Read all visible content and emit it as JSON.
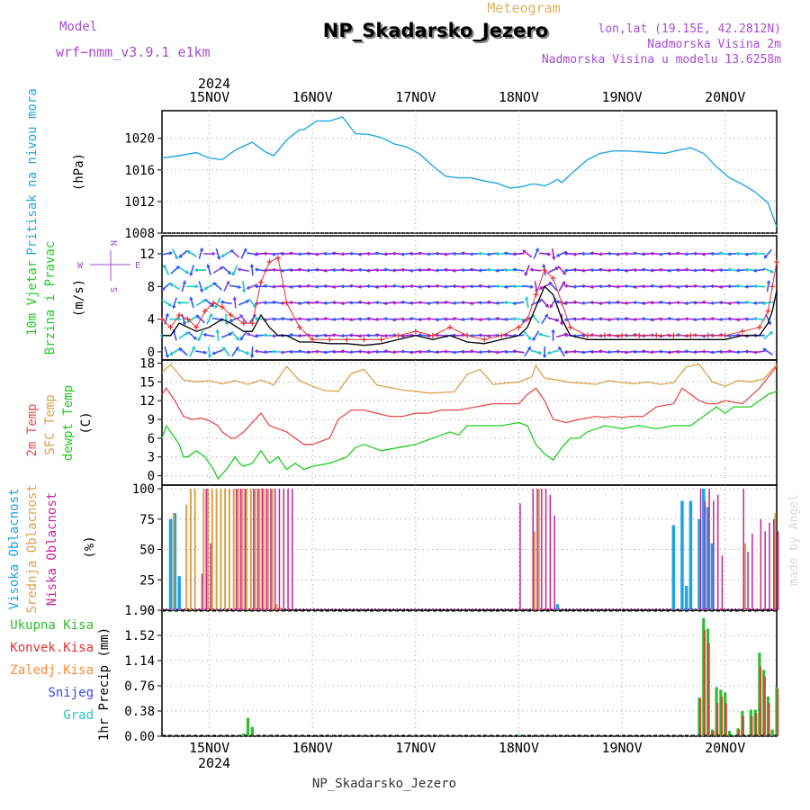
{
  "header": {
    "model_label": "Model",
    "model_name": "wrf−nmm_v3.9.1 e1km",
    "meteogram_label": "Meteogram",
    "station": "NP_Skadarsko_Jezero",
    "coords": "lon,lat (19.15E, 42.2812N)",
    "elevation": "Nadmorska Visina 2m",
    "model_elevation": "Nadmorska Visina u modelu 13.6258m",
    "footer_station": "NP_Skadarsko_Jezero",
    "watermark": "made by Angel"
  },
  "colors": {
    "pressure": "#22a7e0",
    "wind_speed": "#000000",
    "wind_gust": "#e53030",
    "temp_2m": "#e64b4b",
    "sfc_temp": "#d9a24a",
    "dewpoint": "#22cc22",
    "high_cloud": "#1ba3e6",
    "mid_cloud": "#d9a24a",
    "low_cloud": "#cc2299",
    "total_precip": "#33bb33",
    "conv_precip": "#e53030",
    "frozen_precip": "#ff8833",
    "snow": "#3344ff",
    "graupel": "#22ccbb",
    "label_purple": "#a64cd6"
  },
  "time_axis": {
    "year": "2024",
    "days": [
      "15NOV",
      "16NOV",
      "17NOV",
      "18NOV",
      "19NOV",
      "20NOV"
    ],
    "start_hour": 1,
    "end_hour": 144,
    "day_noon_hours": [
      12,
      36,
      60,
      84,
      108,
      132
    ]
  },
  "chart_data": [
    {
      "type": "line",
      "id": "pressure",
      "ylabel": [
        "Pritisak na nivou mora",
        "(hPa)"
      ],
      "yticks": [
        1008,
        1012,
        1016,
        1020
      ],
      "ylim": [
        1008,
        1023.5
      ],
      "grid": true,
      "series": [
        {
          "hours": [
            1,
            5,
            9,
            12,
            15,
            18,
            22,
            25,
            27,
            30,
            33,
            34,
            37,
            40,
            43,
            46,
            49,
            52,
            55,
            58,
            61,
            64,
            67,
            70,
            73,
            76,
            79,
            82,
            85,
            87,
            88,
            90,
            91,
            93,
            94,
            96,
            100,
            103,
            106,
            109,
            112,
            115,
            118,
            121,
            124,
            127,
            130,
            133,
            136,
            139,
            142,
            144
          ],
          "values": [
            1017.5,
            1017.8,
            1018.2,
            1017.5,
            1017.3,
            1018.5,
            1019.5,
            1018.3,
            1017.8,
            1019.8,
            1021.1,
            1021.1,
            1022.2,
            1022.2,
            1022.7,
            1020.6,
            1020.5,
            1020.1,
            1019.3,
            1018.9,
            1018.0,
            1016.5,
            1015.2,
            1015.0,
            1015.0,
            1014.6,
            1014.3,
            1013.7,
            1013.9,
            1014.2,
            1014.2,
            1014.0,
            1014.2,
            1014.8,
            1014.4,
            1015.4,
            1017.3,
            1018.1,
            1018.4,
            1018.4,
            1018.3,
            1018.2,
            1018.1,
            1018.5,
            1018.8,
            1018.1,
            1016.4,
            1015.0,
            1014.2,
            1013.2,
            1011.8,
            1008.8
          ]
        }
      ]
    },
    {
      "type": "line",
      "id": "wind",
      "ylabel": [
        "10m Vjetar",
        "Brzina i Pravac",
        "(m/s)"
      ],
      "direction_key": [
        "N",
        "E",
        "W",
        "S"
      ],
      "yticks": [
        0,
        4,
        8,
        12
      ],
      "ylim": [
        -1,
        14.2
      ],
      "grid": true,
      "series": [
        {
          "name": "wind_speed",
          "hours": [
            1,
            3,
            5,
            7,
            9,
            12,
            15,
            17,
            20,
            22,
            24,
            26,
            28,
            30,
            33,
            36,
            40,
            44,
            48,
            52,
            56,
            60,
            64,
            68,
            72,
            76,
            80,
            84,
            86,
            88,
            90,
            92,
            94,
            96,
            100,
            104,
            108,
            112,
            116,
            120,
            124,
            128,
            132,
            136,
            140,
            142,
            143,
            144
          ],
          "values": [
            2,
            2,
            3.5,
            3,
            2.5,
            3,
            4,
            3.5,
            2.5,
            2.5,
            4.5,
            3,
            2,
            2,
            1.2,
            1.2,
            1,
            1,
            0.8,
            1,
            1.5,
            2,
            1.5,
            2,
            1.2,
            1,
            1.5,
            2,
            3,
            5.5,
            8,
            7,
            4,
            2,
            1.5,
            1.5,
            1.5,
            1.5,
            1.5,
            1.5,
            1.5,
            1.5,
            1.5,
            2,
            2,
            3.5,
            5,
            7.5
          ]
        },
        {
          "name": "wind_gust",
          "hours": [
            1,
            3,
            5,
            7,
            9,
            11,
            13,
            15,
            17,
            20,
            22,
            24,
            26,
            28,
            30,
            33,
            36,
            40,
            44,
            48,
            52,
            56,
            60,
            64,
            68,
            72,
            76,
            80,
            84,
            86,
            88,
            90,
            92,
            94,
            96,
            100,
            104,
            108,
            112,
            116,
            120,
            124,
            128,
            132,
            136,
            140,
            142,
            143,
            144
          ],
          "values": [
            4,
            3,
            4.5,
            4,
            3,
            5,
            6,
            5.5,
            4.5,
            3.5,
            3.5,
            8.5,
            11,
            11.5,
            6,
            3,
            1.5,
            1.5,
            1.5,
            1.5,
            1.5,
            2,
            2.5,
            2,
            3,
            2,
            1.5,
            2,
            3,
            4,
            7,
            10,
            9,
            6,
            3,
            2,
            2,
            2,
            2,
            2,
            2,
            2,
            2,
            2,
            2.5,
            3,
            5,
            8,
            11
          ]
        }
      ]
    },
    {
      "type": "line",
      "id": "temperature",
      "ylabel": [
        "2m Temp",
        "SFC Temp",
        "dewpt Temp",
        "(C)"
      ],
      "yticks": [
        0,
        3,
        6,
        9,
        12,
        15,
        18
      ],
      "ylim": [
        -1.5,
        18.5
      ],
      "grid": true,
      "series": [
        {
          "name": "sfc",
          "hours": [
            1,
            3,
            6,
            9,
            12,
            15,
            18,
            21,
            24,
            27,
            30,
            33,
            36,
            39,
            42,
            45,
            48,
            51,
            54,
            57,
            60,
            63,
            66,
            69,
            72,
            75,
            78,
            81,
            84,
            87,
            88,
            90,
            93,
            96,
            99,
            102,
            105,
            108,
            111,
            114,
            117,
            120,
            123,
            126,
            129,
            132,
            135,
            138,
            141,
            144
          ],
          "values": [
            16.5,
            17.8,
            15.3,
            15.0,
            15.2,
            14.7,
            15.2,
            14.6,
            15.3,
            14.5,
            17.5,
            15.2,
            14.3,
            13.6,
            13.5,
            16.3,
            17.0,
            14.5,
            14.1,
            13.7,
            13.5,
            13.2,
            13.3,
            13.4,
            16.2,
            17.0,
            14.6,
            14.8,
            15.0,
            15.8,
            17.6,
            15.6,
            15.3,
            14.9,
            14.8,
            14.6,
            15.2,
            14.9,
            14.7,
            15.0,
            14.6,
            14.9,
            17.4,
            17.8,
            15.0,
            14.3,
            15.2,
            15.0,
            15.5,
            17.8
          ]
        },
        {
          "name": "temp_2m",
          "hours": [
            1,
            2,
            4,
            6,
            8,
            10,
            12,
            14,
            15,
            17,
            18,
            20,
            22,
            24,
            26,
            28,
            30,
            32,
            34,
            36,
            40,
            42,
            45,
            48,
            51,
            54,
            57,
            60,
            63,
            66,
            70,
            74,
            78,
            82,
            84,
            86,
            88,
            90,
            92,
            95,
            98,
            102,
            104,
            106,
            108,
            110,
            113,
            116,
            120,
            122,
            124,
            126,
            128,
            130,
            132,
            136,
            140,
            144
          ],
          "values": [
            13,
            14,
            12,
            9.5,
            9,
            9.2,
            8.8,
            8,
            7,
            6,
            6,
            7,
            8.5,
            10,
            8,
            7.5,
            7,
            6,
            5,
            5,
            6,
            9,
            10.5,
            10.5,
            10,
            9.5,
            9.5,
            10,
            10,
            10.5,
            10.5,
            11,
            11.5,
            11.5,
            11.5,
            13,
            14,
            12,
            9,
            8.5,
            9,
            9.5,
            9.3,
            9.5,
            9.3,
            9.5,
            9.5,
            11,
            11.5,
            14,
            13,
            12,
            11.5,
            11.5,
            12,
            11.5,
            14,
            17.5
          ]
        },
        {
          "name": "dewpoint",
          "hours": [
            1,
            2,
            3,
            5,
            6,
            7,
            9,
            11,
            12,
            13,
            14,
            16,
            18,
            19,
            20,
            22,
            24,
            26,
            28,
            30,
            32,
            34,
            36,
            40,
            44,
            46,
            48,
            50,
            52,
            56,
            60,
            64,
            68,
            70,
            72,
            76,
            80,
            84,
            86,
            88,
            90,
            92,
            94,
            96,
            98,
            100,
            104,
            108,
            112,
            116,
            120,
            124,
            126,
            128,
            130,
            132,
            134,
            136,
            138,
            140,
            142,
            144
          ],
          "values": [
            6,
            8,
            7,
            5,
            3,
            3,
            4,
            3,
            2,
            1,
            -0.5,
            1,
            3,
            2,
            1.5,
            2,
            4,
            2,
            3,
            1,
            2,
            1,
            1.5,
            2,
            3,
            4.5,
            5,
            4.5,
            4,
            4.5,
            5,
            6,
            7,
            6.5,
            8,
            8,
            8,
            8.5,
            8,
            5,
            3.5,
            2.5,
            4.5,
            6,
            6,
            7,
            8,
            7.5,
            8,
            7.5,
            8,
            8,
            9,
            10,
            11,
            10,
            11,
            11,
            11,
            12,
            13,
            13.5
          ]
        }
      ]
    },
    {
      "type": "bar",
      "id": "cloud",
      "ylabel": [
        "Visoka Oblacnost",
        "Srednja Oblacnost",
        "Niska Oblacnost",
        "(%)"
      ],
      "yticks": [
        0,
        25,
        50,
        75,
        100
      ],
      "ylim": [
        0,
        103
      ],
      "grid": true,
      "series": [
        {
          "name": "high",
          "hours": [
            3,
            4,
            5,
            93,
            120,
            122,
            123,
            124,
            126,
            127,
            128,
            129
          ],
          "values": [
            75,
            80,
            28,
            5,
            70,
            90,
            20,
            90,
            75,
            100,
            85,
            55
          ]
        },
        {
          "name": "mid",
          "hours": [
            4,
            7,
            8,
            9,
            11,
            12,
            13,
            14,
            15,
            16,
            17,
            18,
            19,
            20,
            21,
            22,
            23,
            24,
            25,
            26,
            27,
            28,
            29,
            88,
            89,
            137,
            144
          ],
          "values": [
            80,
            87,
            100,
            100,
            100,
            100,
            100,
            100,
            100,
            100,
            100,
            100,
            100,
            100,
            100,
            100,
            100,
            100,
            100,
            100,
            100,
            5,
            2,
            65,
            100,
            55,
            80
          ]
        },
        {
          "name": "low",
          "hours": [
            10,
            11,
            12,
            18,
            19,
            20,
            22,
            23,
            24,
            25,
            26,
            27,
            28,
            29,
            30,
            31,
            84,
            87,
            88,
            89,
            90,
            91,
            92,
            126,
            127,
            128,
            129,
            130,
            131,
            136,
            137,
            138,
            140,
            141,
            142,
            143,
            144
          ],
          "values": [
            30,
            100,
            55,
            100,
            100,
            100,
            100,
            100,
            100,
            100,
            100,
            100,
            100,
            100,
            100,
            100,
            88,
            100,
            100,
            100,
            100,
            95,
            78,
            100,
            90,
            100,
            90,
            95,
            45,
            100,
            48,
            63,
            75,
            65,
            72,
            75,
            65
          ]
        }
      ]
    },
    {
      "type": "bar",
      "id": "precip",
      "ylabel": [
        "1hr Precip (mm)"
      ],
      "legend": [
        "Ukupna Kisa",
        "Konvek.Kisa",
        "Zaledj.Kisa",
        "Snijeg",
        "Grad"
      ],
      "yticks": [
        0,
        0.38,
        0.76,
        1.14,
        1.52,
        1.9
      ],
      "ylim": [
        0,
        1.9
      ],
      "grid": true,
      "series": [
        {
          "name": "total",
          "hours": [
            20,
            21,
            22,
            84,
            126,
            127,
            128,
            129,
            130,
            131,
            132,
            133,
            134,
            135,
            136,
            137,
            138,
            139,
            140,
            141,
            142,
            143,
            144
          ],
          "values": [
            0.04,
            0.28,
            0.14,
            0.02,
            0.58,
            1.78,
            1.62,
            0.1,
            0.74,
            0.7,
            0.66,
            0.08,
            0.02,
            0.12,
            0.38,
            0.02,
            0.4,
            0.4,
            1.26,
            1.0,
            0.6,
            0.1,
            0.74
          ]
        },
        {
          "name": "convective",
          "hours": [
            126,
            127,
            128,
            129,
            130,
            131,
            132,
            135,
            136,
            138,
            139,
            140,
            141,
            142,
            144
          ],
          "values": [
            0.58,
            1.6,
            1.4,
            0.08,
            0.5,
            0.6,
            0.5,
            0.1,
            0.3,
            0.3,
            0.35,
            1.05,
            0.9,
            0.5,
            0.72
          ]
        }
      ]
    }
  ]
}
